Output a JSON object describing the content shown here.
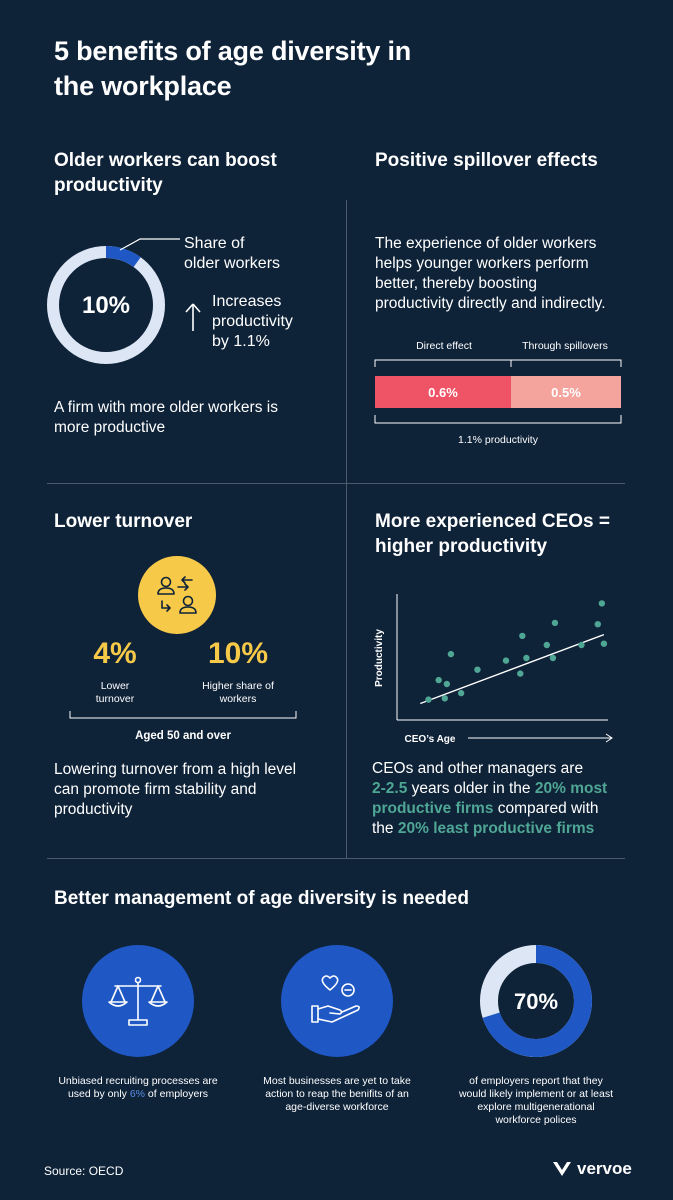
{
  "title_line1": "5 benefits of age diversity in",
  "title_line2": "the workplace",
  "s1": {
    "heading_line1": "Older workers can boost",
    "heading_line2": "productivity",
    "donut_value": "10%",
    "donut_share": 0.1,
    "share_label_line1": "Share of",
    "share_label_line2": "older workers",
    "increase_line1": "Increases",
    "increase_line2": "productivity",
    "increase_line3": "by 1.1%",
    "desc_line1": "A firm with more older workers is",
    "desc_line2": "more productive"
  },
  "s2": {
    "heading": "Positive spillover effects",
    "desc_line1": "The experience of older workers",
    "desc_line2": "helps younger workers perform",
    "desc_line3": "better, thereby boosting",
    "desc_line4": "productivity directly and indirectly.",
    "label_direct": "Direct effect",
    "label_spill": "Through spillovers",
    "value_direct": "0.6%",
    "value_spill": "0.5%",
    "total_label": "1.1% productivity"
  },
  "s3": {
    "heading": "Lower turnover",
    "stat1_value": "4%",
    "stat1_label_line1": "Lower",
    "stat1_label_line2": "turnover",
    "stat2_value": "10%",
    "stat2_label_line1": "Higher share of",
    "stat2_label_line2": "workers",
    "group_label": "Aged 50 and over",
    "desc_line1": "Lowering turnover from a high level",
    "desc_line2": "can promote firm stability and",
    "desc_line3": "productivity"
  },
  "s4": {
    "heading_line1": "More experienced CEOs =",
    "heading_line2": "higher productivity",
    "y_label": "Productivity",
    "x_label": "CEO’s Age",
    "desc_line1": "CEOs and other managers are",
    "desc_hl1": "2-2.5",
    "desc_line2_rest": " years older in the ",
    "desc_hl2": "20% most",
    "desc_hl3": "productive firms",
    "desc_line3_rest": " compared with",
    "desc_line4_pre": "the ",
    "desc_hl4": "20% least productive firms"
  },
  "chart_data": {
    "type": "scatter",
    "title": "",
    "xlabel": "CEO’s Age",
    "ylabel": "Productivity",
    "xlim": [
      0,
      100
    ],
    "ylim": [
      0,
      100
    ],
    "points": [
      {
        "x": 12,
        "y": 8
      },
      {
        "x": 17,
        "y": 23
      },
      {
        "x": 20,
        "y": 9
      },
      {
        "x": 21,
        "y": 20
      },
      {
        "x": 23,
        "y": 43
      },
      {
        "x": 28,
        "y": 13
      },
      {
        "x": 36,
        "y": 31
      },
      {
        "x": 50,
        "y": 38
      },
      {
        "x": 57,
        "y": 28
      },
      {
        "x": 58,
        "y": 57
      },
      {
        "x": 60,
        "y": 40
      },
      {
        "x": 70,
        "y": 50
      },
      {
        "x": 73,
        "y": 40
      },
      {
        "x": 74,
        "y": 67
      },
      {
        "x": 87,
        "y": 50
      },
      {
        "x": 95,
        "y": 66
      },
      {
        "x": 97,
        "y": 82
      },
      {
        "x": 98,
        "y": 51
      }
    ],
    "trend": [
      [
        8,
        5
      ],
      [
        98,
        58
      ]
    ]
  },
  "s5": {
    "heading": "Better management of age diversity is needed",
    "c1_line1": "Unbiased recruiting processes are",
    "c1_line2_pre": "used by only ",
    "c1_pct": "6%",
    "c1_line2_post": " of employers",
    "c2_line1": "Most businesses are yet to take",
    "c2_line2": "action to reap the benifits of an",
    "c2_line3": "age-diverse workforce",
    "c3_value": "70%",
    "c3_share": 0.7,
    "c3_line1": "of employers report that they",
    "c3_line2": "would likely implement or at least",
    "c3_line3": "explore multigenerational",
    "c3_line4": "workforce polices"
  },
  "footer": {
    "source": "Source: OECD",
    "brand": "vervoe"
  },
  "colors": {
    "background": "#0e2238",
    "blue": "#1f58c4",
    "donut_track": "#dce6f5",
    "red": "#ef5466",
    "salmon": "#f5a39d",
    "yellow": "#f7c948",
    "green": "#4fa694"
  }
}
